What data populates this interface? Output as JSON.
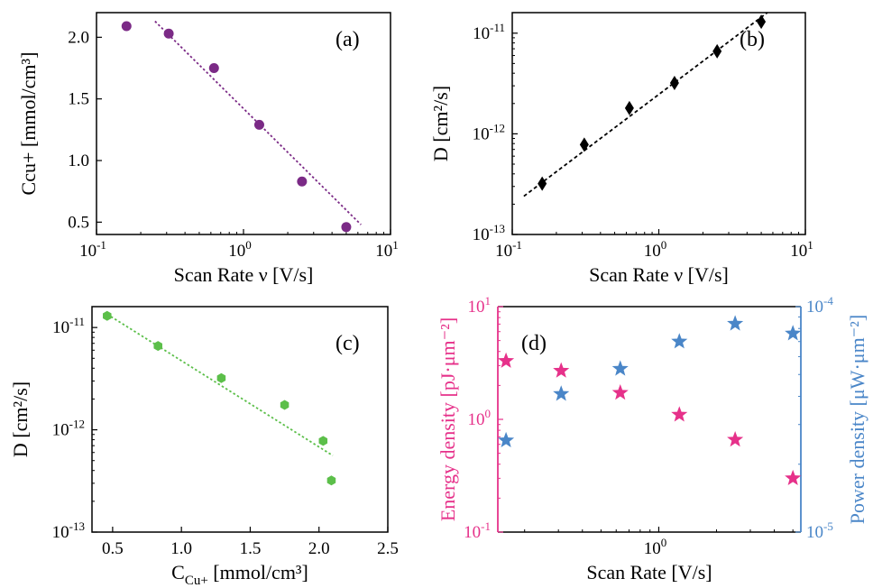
{
  "chart_data": [
    {
      "id": "a",
      "type": "scatter",
      "panel_label": "(a)",
      "xlabel": "Scan Rate ν  [V/s]",
      "ylabel": "Ccu+  [mmol/cm³]",
      "xscale": "log",
      "xlim": [
        0.1,
        10
      ],
      "ylim": [
        0.4,
        2.2
      ],
      "xticks": [
        {
          "v": 0.1,
          "b": "10",
          "e": "-1"
        },
        {
          "v": 1,
          "b": "10",
          "e": "0"
        },
        {
          "v": 10,
          "b": "10",
          "e": "1"
        }
      ],
      "yticks": [
        {
          "v": 0.5,
          "t": "0.5"
        },
        {
          "v": 1.0,
          "t": "1.0"
        },
        {
          "v": 1.5,
          "t": "1.5"
        },
        {
          "v": 2.0,
          "t": "2.0"
        }
      ],
      "color": "#7b2a86",
      "marker": "circle",
      "points": [
        [
          0.16,
          2.09
        ],
        [
          0.31,
          2.03
        ],
        [
          0.63,
          1.75
        ],
        [
          1.28,
          1.29
        ],
        [
          2.5,
          0.83
        ],
        [
          5.0,
          0.46
        ]
      ],
      "fit": {
        "color": "#7b2a86",
        "points": [
          [
            0.25,
            2.13
          ],
          [
            6.3,
            0.48
          ]
        ]
      }
    },
    {
      "id": "b",
      "type": "scatter",
      "panel_label": "(b)",
      "xlabel": "Scan Rate ν  [V/s]",
      "ylabel": "D  [cm²/s]",
      "xscale": "log",
      "yscale": "log",
      "xlim": [
        0.1,
        10
      ],
      "ylim": [
        1e-13,
        1.6e-11
      ],
      "xticks": [
        {
          "v": 0.1,
          "b": "10",
          "e": "-1"
        },
        {
          "v": 1,
          "b": "10",
          "e": "0"
        },
        {
          "v": 10,
          "b": "10",
          "e": "1"
        }
      ],
      "yticks": [
        {
          "v": 1e-13,
          "b": "10",
          "e": "-13"
        },
        {
          "v": 1e-12,
          "b": "10",
          "e": "-12"
        },
        {
          "v": 1e-11,
          "b": "10",
          "e": "-11"
        }
      ],
      "color": "#000000",
      "marker": "diamond",
      "points": [
        [
          0.16,
          3.2e-13
        ],
        [
          0.31,
          7.8e-13
        ],
        [
          0.63,
          1.8e-12
        ],
        [
          1.28,
          3.2e-12
        ],
        [
          2.5,
          6.6e-12
        ],
        [
          5.0,
          1.3e-11
        ]
      ],
      "fit": {
        "color": "#000000",
        "points": [
          [
            0.12,
            2.4e-13
          ],
          [
            5.5,
            1.6e-11
          ]
        ]
      }
    },
    {
      "id": "c",
      "type": "scatter",
      "panel_label": "(c)",
      "xlabel": "C",
      "xlabel_sub": "Cu+",
      "xlabel_rest": " [mmol/cm³]",
      "ylabel": "D [cm²/s]",
      "yscale": "log",
      "xlim": [
        0.35,
        2.5
      ],
      "ylim": [
        1e-13,
        1.6e-11
      ],
      "xticks": [
        {
          "v": 0.5,
          "t": "0.5"
        },
        {
          "v": 1.0,
          "t": "1.0"
        },
        {
          "v": 1.5,
          "t": "1.5"
        },
        {
          "v": 2.0,
          "t": "2.0"
        },
        {
          "v": 2.5,
          "t": "2.5"
        }
      ],
      "yticks": [
        {
          "v": 1e-13,
          "b": "10",
          "e": "-13"
        },
        {
          "v": 1e-12,
          "b": "10",
          "e": "-12"
        },
        {
          "v": 1e-11,
          "b": "10",
          "e": "-11"
        }
      ],
      "color": "#5cbf4a",
      "marker": "hexagon",
      "points": [
        [
          0.46,
          1.3e-11
        ],
        [
          0.83,
          6.6e-12
        ],
        [
          1.29,
          3.2e-12
        ],
        [
          1.75,
          1.75e-12
        ],
        [
          2.03,
          7.8e-13
        ],
        [
          2.09,
          3.2e-13
        ]
      ],
      "fit": {
        "color": "#5cbf4a",
        "points": [
          [
            0.46,
            1.35e-11
          ],
          [
            2.1,
            5.6e-13
          ]
        ]
      }
    },
    {
      "id": "d",
      "type": "scatter",
      "panel_label": "(d)",
      "xlabel": "Scan Rate [V/s]",
      "xscale": "log",
      "xlim": [
        0.145,
        5.5
      ],
      "xticks": [
        {
          "v": 1,
          "b": "10",
          "e": "0"
        }
      ],
      "series": [
        {
          "name": "Energy density [pJ·μm⁻²]",
          "axis": "left",
          "yscale": "log",
          "ylim": [
            0.1,
            10
          ],
          "yticks": [
            {
              "v": 0.1,
              "b": "10",
              "e": "-1"
            },
            {
              "v": 1,
              "b": "10",
              "e": "0"
            },
            {
              "v": 10,
              "b": "10",
              "e": "1"
            }
          ],
          "color": "#e6318a",
          "marker": "star",
          "points": [
            [
              0.16,
              3.3
            ],
            [
              0.31,
              2.7
            ],
            [
              0.63,
              1.72
            ],
            [
              1.28,
              1.1
            ],
            [
              2.5,
              0.66
            ],
            [
              5.0,
              0.3
            ]
          ]
        },
        {
          "name": "Power density [μW·μm⁻²]",
          "axis": "right",
          "yscale": "log",
          "ylim": [
            1e-05,
            0.0001
          ],
          "yticks": [
            {
              "v": 1e-05,
              "b": "10",
              "e": "-5"
            },
            {
              "v": 0.0001,
              "b": "10",
              "e": "-4"
            }
          ],
          "color": "#4a86c8",
          "marker": "star",
          "points": [
            [
              0.16,
              2.55e-05
            ],
            [
              0.31,
              4.1e-05
            ],
            [
              0.63,
              5.3e-05
            ],
            [
              1.28,
              7e-05
            ],
            [
              2.5,
              8.4e-05
            ],
            [
              5.0,
              7.6e-05
            ]
          ]
        }
      ]
    }
  ]
}
